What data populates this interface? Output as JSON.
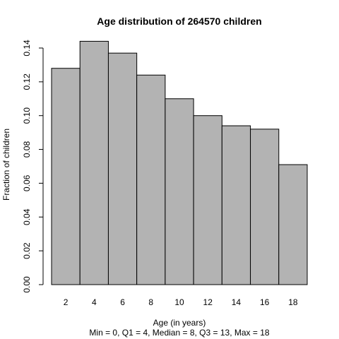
{
  "chart_data": {
    "type": "bar",
    "title": "Age distribution of 264570 children",
    "xlabel": "Age (in years)",
    "ylabel": "Fraction of children",
    "subtitle": "Min = 0, Q1 = 4, Median = 8, Q3 = 13, Max = 18",
    "bins": [
      {
        "start": 0,
        "end": 2,
        "value": 0.128
      },
      {
        "start": 2,
        "end": 4,
        "value": 0.144
      },
      {
        "start": 4,
        "end": 6,
        "value": 0.137
      },
      {
        "start": 6,
        "end": 8,
        "value": 0.124
      },
      {
        "start": 8,
        "end": 10,
        "value": 0.11
      },
      {
        "start": 10,
        "end": 12,
        "value": 0.1
      },
      {
        "start": 12,
        "end": 14,
        "value": 0.094
      },
      {
        "start": 14,
        "end": 16,
        "value": 0.092
      },
      {
        "start": 16,
        "end": 18,
        "value": 0.071
      }
    ],
    "x_ticks": [
      "2",
      "4",
      "6",
      "8",
      "10",
      "12",
      "14",
      "16",
      "18"
    ],
    "y_ticks": [
      "0.00",
      "0.02",
      "0.04",
      "0.06",
      "0.08",
      "0.10",
      "0.12",
      "0.14"
    ],
    "x_range": [
      0,
      18
    ],
    "ylim": [
      0,
      0.14
    ],
    "bar_color": "#b3b3b3",
    "edge_color": "#000000",
    "grid": false,
    "legend": "none"
  }
}
